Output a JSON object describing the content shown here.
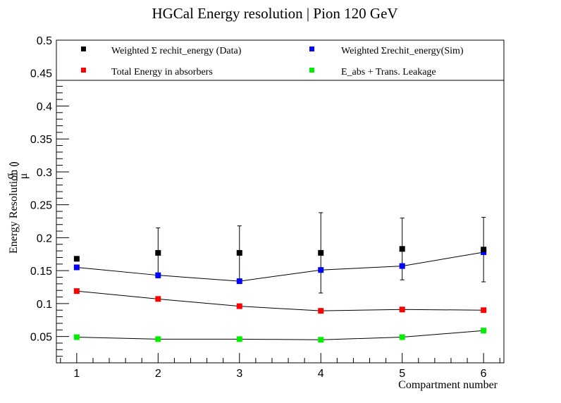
{
  "chart_data": {
    "type": "scatter",
    "title": "HGCal Energy resolution | Pion 120 GeV",
    "xlabel": "Compartment number",
    "ylabel": {
      "text": "Energy Resolution (",
      "numerator": "σ",
      "denominator": "μ",
      "close": ")"
    },
    "xlim": [
      0.75,
      6.25
    ],
    "ylim": [
      0.01,
      0.5
    ],
    "xticks": [
      1,
      2,
      3,
      4,
      5,
      6
    ],
    "yticks": [
      0.05,
      0.1,
      0.15,
      0.2,
      0.25,
      0.3,
      0.35,
      0.4,
      0.45,
      0.5
    ],
    "ytick_labels": [
      "0.05",
      "0.1",
      "0.15",
      "0.2",
      "0.25",
      "0.3",
      "0.35",
      "0.4",
      "0.45",
      "0.5"
    ],
    "x": [
      1,
      2,
      3,
      4,
      5,
      6
    ],
    "grid": false,
    "legend_position": "top",
    "series": [
      {
        "name": "Weighted Σ rechit_energy (Data)",
        "color": "#000000",
        "values": [
          0.168,
          0.177,
          0.177,
          0.177,
          0.183,
          0.182
        ],
        "errors": [
          0.0,
          0.038,
          0.041,
          0.061,
          0.047,
          0.049
        ],
        "line": false
      },
      {
        "name": "Weighted Σrechit_energy(Sim)",
        "color": "#0000ff",
        "values": [
          0.155,
          0.143,
          0.134,
          0.151,
          0.157,
          0.178
        ],
        "errors": [
          0,
          0,
          0,
          0,
          0,
          0
        ],
        "line": true
      },
      {
        "name": "Total Energy in absorbers",
        "color": "#ff0000",
        "values": [
          0.119,
          0.107,
          0.096,
          0.089,
          0.091,
          0.09
        ],
        "errors": [
          0,
          0,
          0,
          0,
          0,
          0
        ],
        "line": true
      },
      {
        "name": "E_abs + Trans. Leakage",
        "color": "#00ee00",
        "values": [
          0.049,
          0.046,
          0.046,
          0.045,
          0.049,
          0.059
        ],
        "errors": [
          0,
          0,
          0,
          0,
          0,
          0
        ],
        "line": true
      }
    ]
  }
}
